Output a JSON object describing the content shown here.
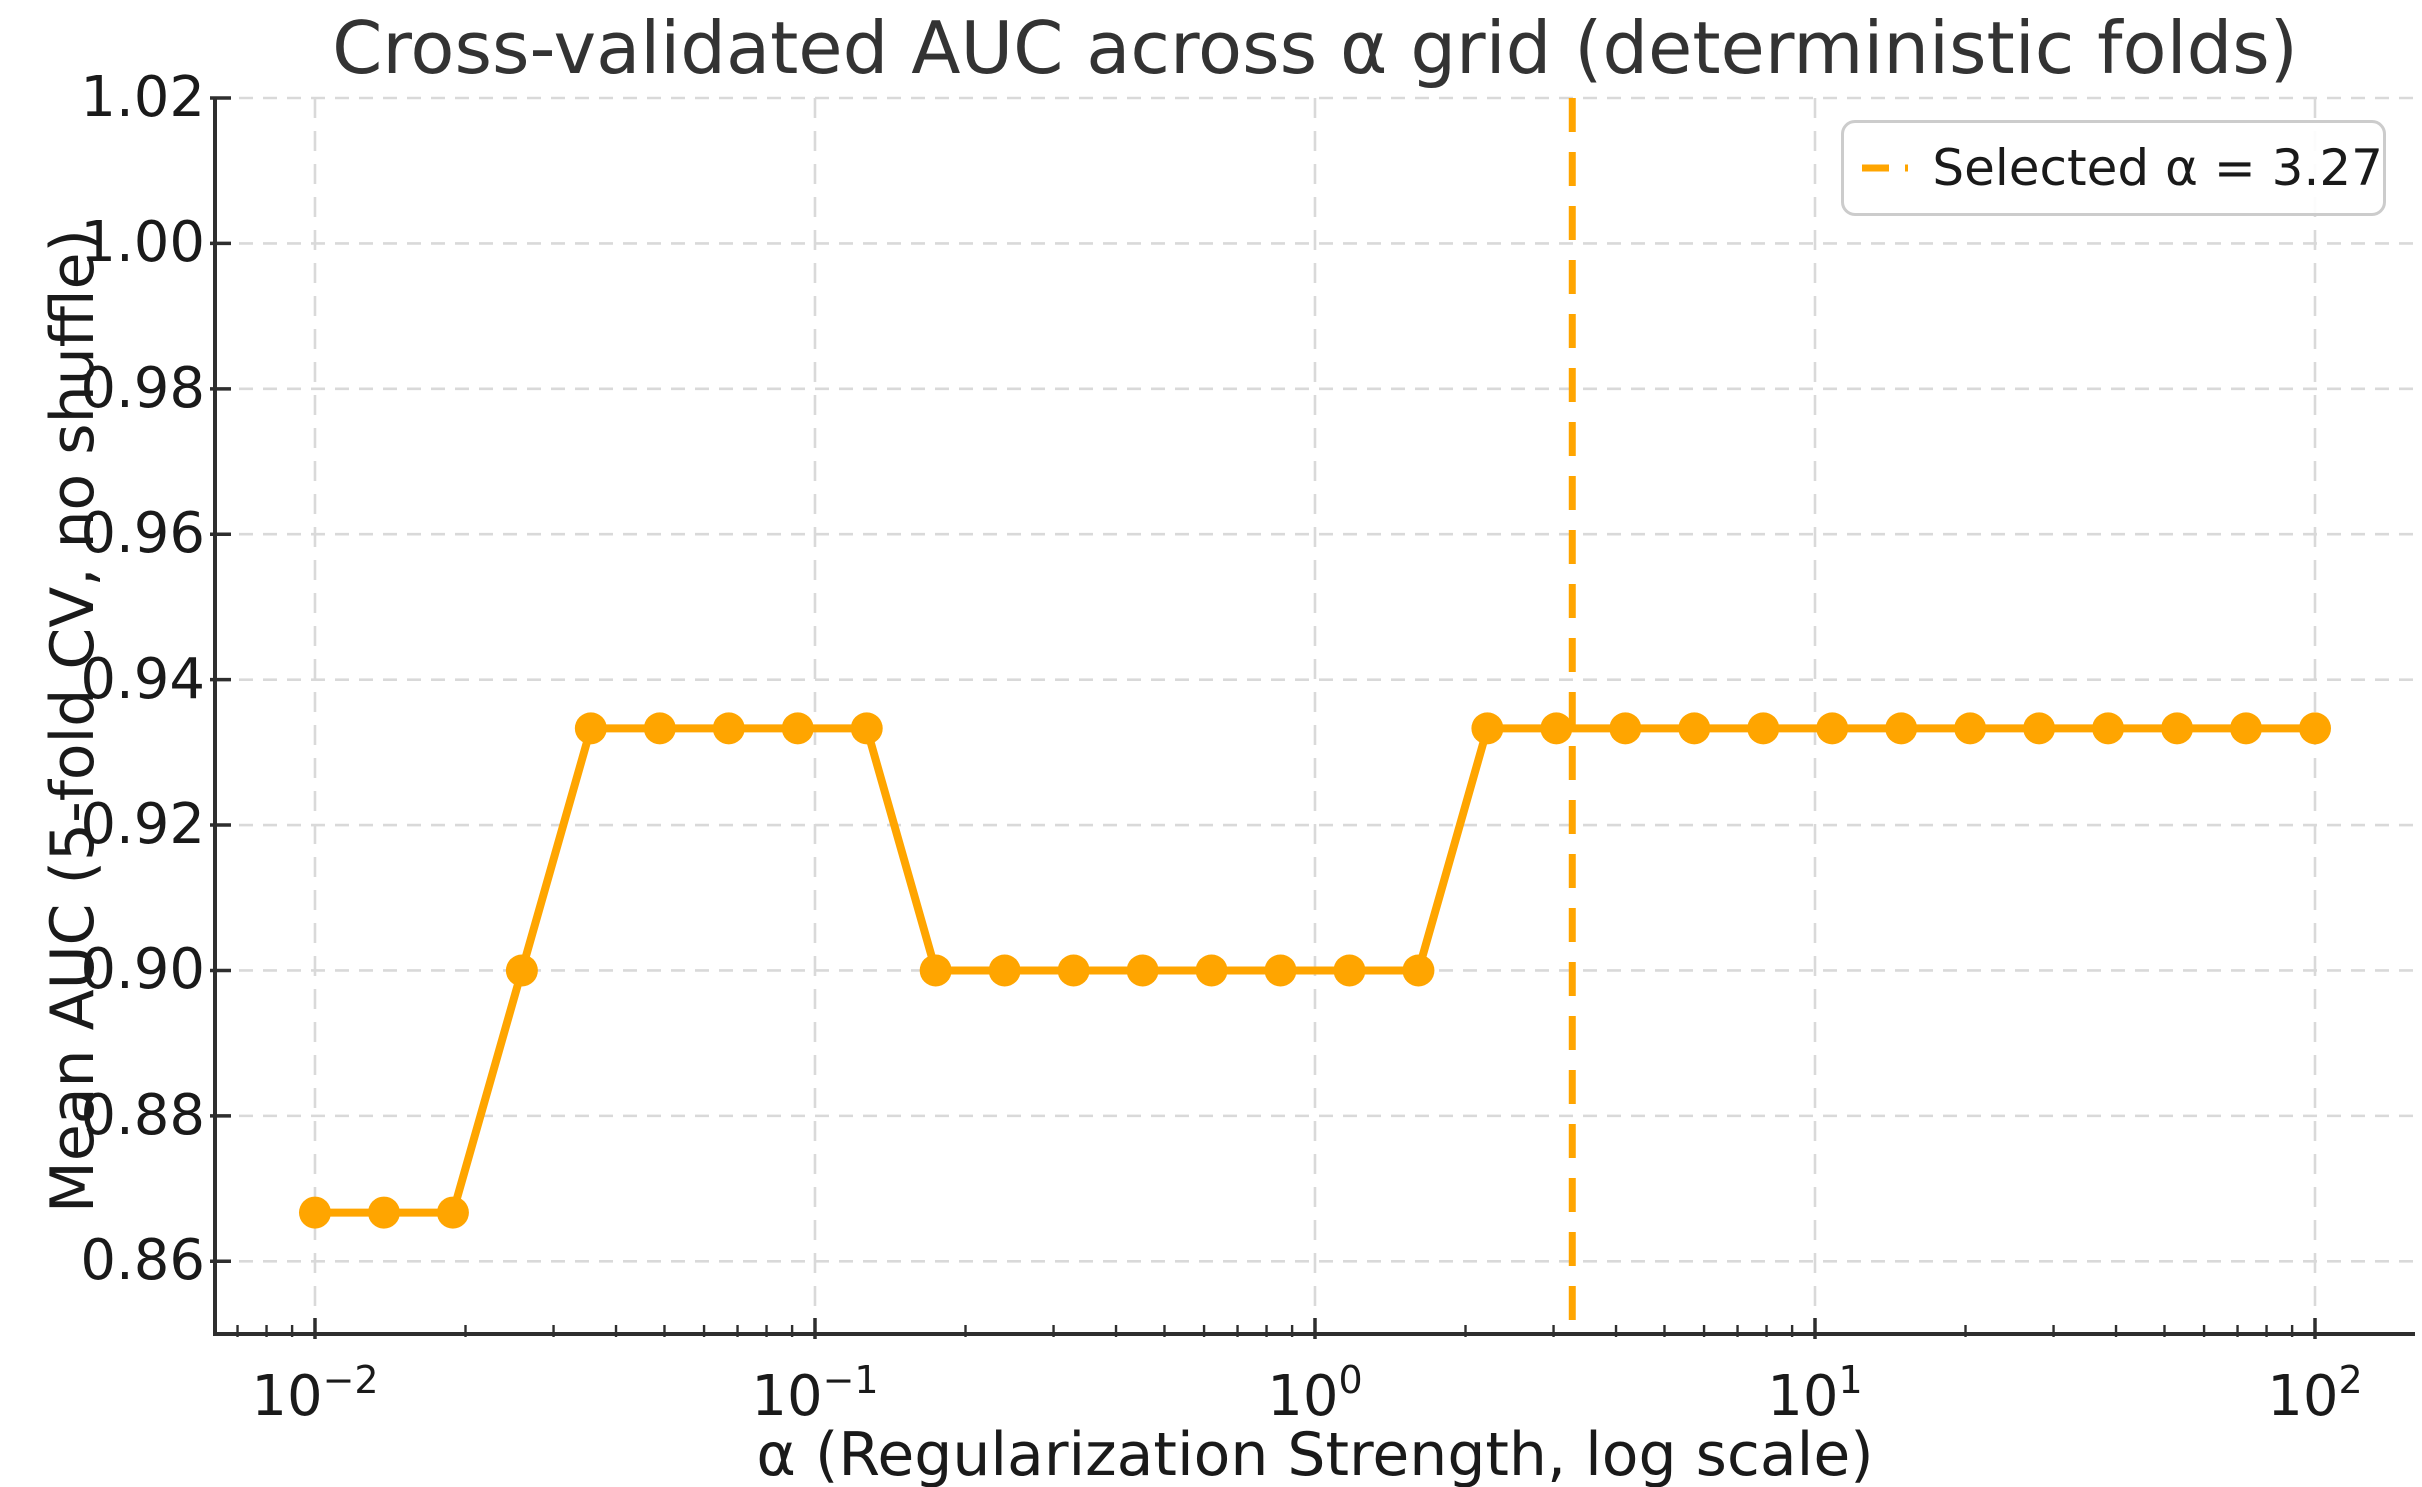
{
  "chart_data": {
    "type": "line",
    "title": "Cross-validated AUC across α grid (deterministic folds)",
    "xlabel": "α (Regularization Strength, log scale)",
    "ylabel": "Mean AUC (5-fold CV, no shuffle)",
    "x_scale": "log",
    "grid": true,
    "series_name": "Mean AUC",
    "line_color": "#FFA500",
    "x": [
      0.01,
      0.013738,
      0.018874,
      0.025929,
      0.035622,
      0.048939,
      0.067234,
      0.092367,
      0.1269,
      0.17433,
      0.2395,
      0.32903,
      0.45204,
      0.62102,
      0.85317,
      1.1721,
      1.61026,
      2.21222,
      3.03919,
      4.17532,
      5.73615,
      7.88046,
      10.82637,
      14.87352,
      20.4336,
      28.07216,
      38.5662,
      52.98317,
      72.78954,
      100.0
    ],
    "y": [
      0.8667,
      0.8667,
      0.8667,
      0.9,
      0.9333,
      0.9333,
      0.9333,
      0.9333,
      0.9333,
      0.9,
      0.9,
      0.9,
      0.9,
      0.9,
      0.9,
      0.9,
      0.9,
      0.9333,
      0.9333,
      0.9333,
      0.9333,
      0.9333,
      0.9333,
      0.9333,
      0.9333,
      0.9333,
      0.9333,
      0.9333,
      0.9333,
      0.9333
    ],
    "selected_alpha": 3.27,
    "selected_line_style": "dashed",
    "xlim": [
      0.00631,
      158.49
    ],
    "ylim": [
      0.85,
      1.02
    ],
    "y_ticks": [
      0.86,
      0.88,
      0.9,
      0.92,
      0.94,
      0.96,
      0.98,
      1.0,
      1.02
    ],
    "y_tick_labels": [
      "0.86",
      "0.88",
      "0.90",
      "0.92",
      "0.94",
      "0.96",
      "0.98",
      "1.00",
      "1.02"
    ],
    "x_tick_values": [
      0.01,
      0.1,
      1,
      10,
      100
    ],
    "x_tick_exponents": [
      "−2",
      "−1",
      "0",
      "1",
      "2"
    ],
    "legend": {
      "label": "Selected α = 3.27",
      "position": "upper right"
    },
    "colors": {
      "series": "#FFA500",
      "grid": "#d9d9d9",
      "spine": "#2e2e2e",
      "text": "#1a1a1a",
      "title_text": "#333333",
      "legend_border": "#cccccc"
    }
  }
}
